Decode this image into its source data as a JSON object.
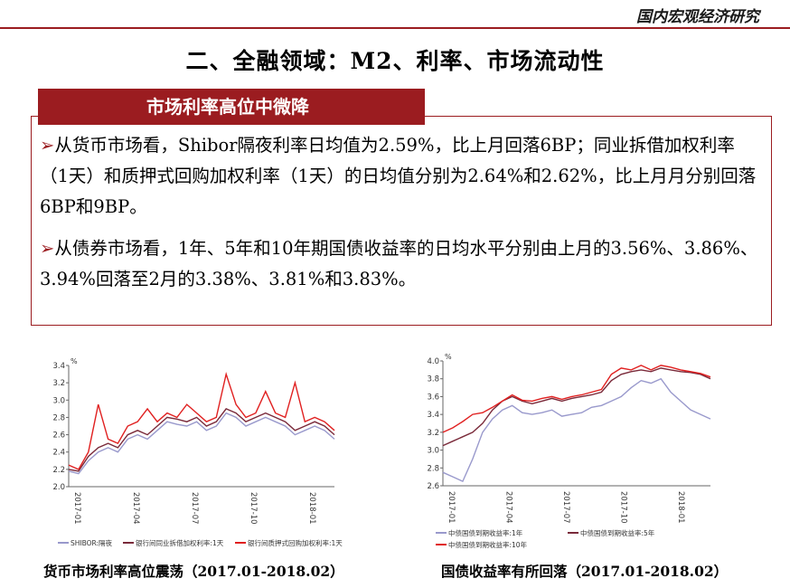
{
  "header": {
    "title": "国内宏观经济研究"
  },
  "page_title": "二、全融领域：M2、利率、市场流动性",
  "section_tag": "市场利率高位中微降",
  "bullets": [
    "从货币市场看，Shibor隔夜利率日均值为2.59%，比上月回落6BP；同业拆借加权利率（1天）和质押式回购加权利率（1天）的日均值分别为2.64%和2.62%，比上月月分别回落6BP和9BP。",
    "从债券市场看，1年、5年和10年期国债收益率的日均水平分别由上月的3.56%、3.86%、3.94%回落至2月的3.38%、3.81%和3.83%。"
  ],
  "captions": [
    "货币市场利率高位震荡（2017.01-2018.02）",
    "国债收益率有所回落（2017.01-2018.02）"
  ],
  "chart_data": [
    {
      "type": "line",
      "unit": "%",
      "ylim": [
        2.0,
        3.4
      ],
      "yticks": [
        "3.4",
        "3.2",
        "3.0",
        "2.8",
        "2.6",
        "2.4",
        "2.2",
        "2.0"
      ],
      "xticks": [
        "2017-01",
        "2017-04",
        "2017-07",
        "2017-10",
        "2018-01"
      ],
      "colors": [
        "#9999cc",
        "#7a2a3a",
        "#e02020"
      ],
      "series": [
        {
          "name": "SHIBOR:隔夜",
          "values": [
            2.18,
            2.15,
            2.3,
            2.4,
            2.45,
            2.4,
            2.55,
            2.6,
            2.55,
            2.65,
            2.75,
            2.72,
            2.7,
            2.75,
            2.65,
            2.7,
            2.85,
            2.8,
            2.7,
            2.75,
            2.8,
            2.75,
            2.7,
            2.6,
            2.65,
            2.7,
            2.65,
            2.55
          ]
        },
        {
          "name": "银行间同业拆借加权利率:1天",
          "values": [
            2.2,
            2.18,
            2.35,
            2.45,
            2.5,
            2.45,
            2.6,
            2.65,
            2.6,
            2.7,
            2.8,
            2.78,
            2.75,
            2.8,
            2.7,
            2.75,
            2.9,
            2.85,
            2.75,
            2.8,
            2.85,
            2.8,
            2.75,
            2.65,
            2.7,
            2.75,
            2.7,
            2.6
          ]
        },
        {
          "name": "银行间质押式回购加权利率:1天",
          "values": [
            2.25,
            2.2,
            2.4,
            2.95,
            2.55,
            2.5,
            2.7,
            2.75,
            2.9,
            2.75,
            2.85,
            2.8,
            2.95,
            2.85,
            2.75,
            2.8,
            3.3,
            2.95,
            2.8,
            2.85,
            3.1,
            2.85,
            2.8,
            3.2,
            2.75,
            2.8,
            2.75,
            2.65
          ]
        }
      ]
    },
    {
      "type": "line",
      "unit": "%",
      "ylim": [
        2.6,
        4.0
      ],
      "yticks": [
        "4.0",
        "3.8",
        "3.6",
        "3.4",
        "3.2",
        "3.0",
        "2.8",
        "2.6"
      ],
      "xticks": [
        "2017-01",
        "2017-04",
        "2017-07",
        "2017-10",
        "2018-01"
      ],
      "colors": [
        "#9999cc",
        "#7a2a3a",
        "#e02020"
      ],
      "series": [
        {
          "name": "中债国债到期收益率:1年",
          "values": [
            2.75,
            2.7,
            2.65,
            2.9,
            3.2,
            3.35,
            3.45,
            3.5,
            3.42,
            3.4,
            3.42,
            3.45,
            3.38,
            3.4,
            3.42,
            3.48,
            3.5,
            3.55,
            3.6,
            3.7,
            3.78,
            3.75,
            3.8,
            3.65,
            3.55,
            3.45,
            3.4,
            3.35
          ]
        },
        {
          "name": "中债国债到期收益率:5年",
          "values": [
            3.05,
            3.1,
            3.15,
            3.2,
            3.3,
            3.45,
            3.55,
            3.6,
            3.55,
            3.52,
            3.55,
            3.58,
            3.55,
            3.58,
            3.6,
            3.62,
            3.65,
            3.78,
            3.85,
            3.88,
            3.9,
            3.88,
            3.92,
            3.9,
            3.88,
            3.87,
            3.85,
            3.8
          ]
        },
        {
          "name": "中债国债到期收益率:10年",
          "values": [
            3.2,
            3.25,
            3.32,
            3.4,
            3.42,
            3.48,
            3.55,
            3.62,
            3.56,
            3.55,
            3.58,
            3.6,
            3.57,
            3.6,
            3.62,
            3.65,
            3.68,
            3.85,
            3.92,
            3.9,
            3.95,
            3.9,
            3.95,
            3.93,
            3.9,
            3.88,
            3.86,
            3.82
          ]
        }
      ]
    }
  ]
}
